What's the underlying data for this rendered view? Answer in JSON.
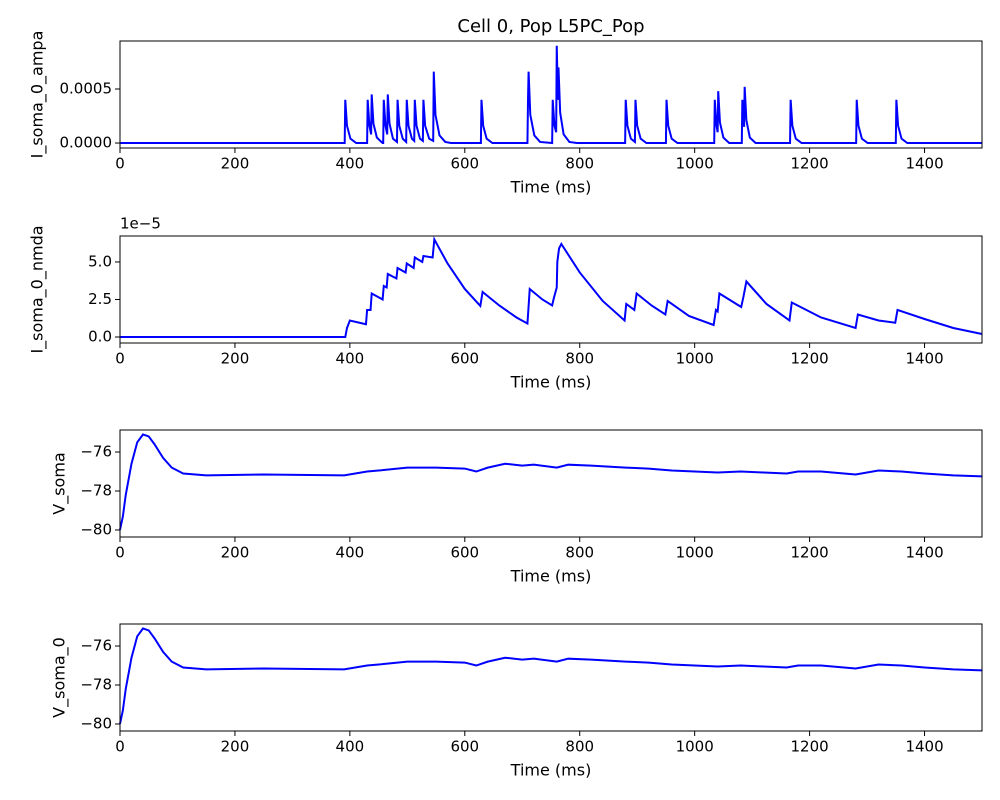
{
  "chart_data": [
    {
      "type": "line",
      "title": "Cell 0, Pop L5PC_Pop",
      "xlabel": "Time (ms)",
      "ylabel": "I_soma_0_ampa",
      "color": "#0000ff",
      "x": [
        0,
        391,
        392,
        395,
        401,
        411,
        430,
        431,
        434,
        437,
        438,
        441,
        447,
        457,
        458,
        459,
        462,
        465,
        466,
        469,
        475,
        482,
        483,
        486,
        492,
        498,
        499,
        502,
        508,
        512,
        513,
        516,
        522,
        527,
        528,
        531,
        538,
        545,
        546,
        549,
        556,
        566,
        576,
        628,
        629,
        632,
        638,
        648,
        709,
        710,
        711,
        714,
        721,
        731,
        752,
        753,
        756,
        759,
        760,
        762,
        763,
        766,
        772,
        782,
        795,
        879,
        880,
        883,
        889,
        896,
        897,
        900,
        906,
        916,
        950,
        951,
        954,
        960,
        970,
        1034,
        1035,
        1038,
        1040,
        1041,
        1044,
        1050,
        1060,
        1082,
        1083,
        1085,
        1086,
        1087,
        1090,
        1096,
        1106,
        1166,
        1167,
        1170,
        1176,
        1186,
        1281,
        1282,
        1285,
        1291,
        1301,
        1350,
        1351,
        1354,
        1360,
        1370,
        1500
      ],
      "values": [
        0,
        0,
        0.0004,
        0.00016,
        4e-05,
        0,
        0,
        0.0004,
        0.00016,
        8e-05,
        0.00045,
        0.00018,
        5e-05,
        0,
        0,
        0.0004,
        0.00016,
        8e-05,
        0.00045,
        0.00018,
        4e-05,
        1e-05,
        0.0004,
        0.00016,
        4e-05,
        1e-05,
        0.0004,
        0.00016,
        4e-05,
        2e-05,
        0.0004,
        0.00016,
        4e-05,
        2e-05,
        0.0004,
        0.00016,
        4e-05,
        2e-05,
        0.00066,
        0.00026,
        7e-05,
        1e-05,
        0,
        0,
        0.0004,
        0.00016,
        4e-05,
        0,
        0,
        0.0004,
        0.00066,
        0.00026,
        7e-05,
        1e-05,
        0,
        0.0004,
        0.00016,
        0.0001,
        0.0009,
        0.0004,
        0.0007,
        0.00028,
        8e-05,
        1e-05,
        0,
        0,
        0.0004,
        0.00016,
        4e-05,
        1e-05,
        0.0004,
        0.00016,
        4e-05,
        0,
        0,
        0.0004,
        0.00016,
        4e-05,
        0,
        0,
        0.0004,
        0.00016,
        0.0001,
        0.00048,
        0.00019,
        5e-05,
        0,
        0,
        0.0004,
        0.0002,
        0.00015,
        0.00052,
        0.00021,
        5e-05,
        0,
        0,
        0.0004,
        0.00016,
        4e-05,
        0,
        0,
        0.0004,
        0.00016,
        4e-05,
        0,
        0,
        0.0004,
        0.00016,
        4e-05,
        0,
        0
      ],
      "xlim": [
        0,
        1500
      ],
      "xticks": [
        0,
        200,
        400,
        600,
        800,
        1000,
        1200,
        1400
      ],
      "ylim": [
        -4.6e-05,
        0.000944
      ],
      "yticks": [
        {
          "value": 0,
          "label": "0.0000"
        },
        {
          "value": 0.0005,
          "label": "0.0005"
        }
      ]
    },
    {
      "type": "line",
      "xlabel": "Time (ms)",
      "ylabel": "I_soma_0_nmda",
      "offset_text": "1e−5",
      "color": "#0000ff",
      "x": [
        0,
        392,
        395,
        400,
        428,
        430,
        436,
        438,
        457,
        459,
        464,
        466,
        481,
        483,
        497,
        499,
        511,
        513,
        526,
        528,
        544,
        547,
        570,
        600,
        627,
        631,
        660,
        690,
        709,
        713,
        735,
        752,
        755,
        760,
        761,
        764,
        768,
        800,
        840,
        878,
        881,
        895,
        899,
        925,
        949,
        953,
        990,
        1033,
        1037,
        1040,
        1043,
        1081,
        1085,
        1090,
        1125,
        1165,
        1169,
        1220,
        1280,
        1284,
        1320,
        1349,
        1353,
        1400,
        1450,
        1500
      ],
      "values": [
        0,
        0,
        0.6,
        1.1,
        0.85,
        1.8,
        1.8,
        2.9,
        2.5,
        3.4,
        3.3,
        4.2,
        3.9,
        4.6,
        4.3,
        4.9,
        4.6,
        5.3,
        5.0,
        5.4,
        5.3,
        6.5,
        4.9,
        3.2,
        2.07,
        3.0,
        2.1,
        1.3,
        0.9,
        3.2,
        2.5,
        2.1,
        2.6,
        3.3,
        5.0,
        5.9,
        6.2,
        4.3,
        2.4,
        1.1,
        2.2,
        1.8,
        2.9,
        2.1,
        1.5,
        2.4,
        1.4,
        0.8,
        1.8,
        1.7,
        2.9,
        2.0,
        2.7,
        3.7,
        2.2,
        1.1,
        2.3,
        1.3,
        0.6,
        1.5,
        1.1,
        0.95,
        1.8,
        1.2,
        0.6,
        0.2
      ],
      "xlim": [
        0,
        1500
      ],
      "xticks": [
        0,
        200,
        400,
        600,
        800,
        1000,
        1200,
        1400
      ],
      "ylim": [
        -0.4,
        6.73
      ],
      "yticks": [
        {
          "value": 0,
          "label": "0.0"
        },
        2.5,
        {
          "value": 5,
          "label": "5.0"
        }
      ]
    },
    {
      "type": "line",
      "xlabel": "Time (ms)",
      "ylabel": "V_soma",
      "color": "#0000ff",
      "x": [
        0,
        5,
        10,
        20,
        30,
        40,
        50,
        60,
        75,
        90,
        110,
        150,
        250,
        390,
        430,
        450,
        500,
        550,
        600,
        620,
        640,
        670,
        700,
        720,
        760,
        780,
        820,
        880,
        920,
        960,
        1000,
        1040,
        1080,
        1120,
        1160,
        1180,
        1220,
        1260,
        1280,
        1320,
        1360,
        1400,
        1450,
        1500
      ],
      "values": [
        -80,
        -79.3,
        -78.2,
        -76.6,
        -75.5,
        -75.1,
        -75.2,
        -75.6,
        -76.3,
        -76.8,
        -77.1,
        -77.2,
        -77.15,
        -77.2,
        -77.0,
        -76.95,
        -76.8,
        -76.8,
        -76.85,
        -77.0,
        -76.8,
        -76.6,
        -76.7,
        -76.65,
        -76.8,
        -76.65,
        -76.7,
        -76.8,
        -76.85,
        -76.95,
        -77.0,
        -77.05,
        -77.0,
        -77.05,
        -77.1,
        -77.0,
        -77.0,
        -77.1,
        -77.15,
        -76.95,
        -77.0,
        -77.1,
        -77.2,
        -77.25
      ],
      "xlim": [
        0,
        1500
      ],
      "xticks": [
        0,
        200,
        400,
        600,
        800,
        1000,
        1200,
        1400
      ],
      "ylim": [
        -80.36,
        -74.87
      ],
      "yticks": [
        {
          "value": -80,
          "label": "−80"
        },
        {
          "value": -78,
          "label": "−78"
        },
        {
          "value": -76,
          "label": "−76"
        }
      ]
    },
    {
      "type": "line",
      "xlabel": "Time (ms)",
      "ylabel": "V_soma_0",
      "color": "#0000ff",
      "x": [
        0,
        5,
        10,
        20,
        30,
        40,
        50,
        60,
        75,
        90,
        110,
        150,
        250,
        390,
        430,
        450,
        500,
        550,
        600,
        620,
        640,
        670,
        700,
        720,
        760,
        780,
        820,
        880,
        920,
        960,
        1000,
        1040,
        1080,
        1120,
        1160,
        1180,
        1220,
        1260,
        1280,
        1320,
        1360,
        1400,
        1450,
        1500
      ],
      "values": [
        -80,
        -79.3,
        -78.2,
        -76.6,
        -75.5,
        -75.1,
        -75.2,
        -75.6,
        -76.3,
        -76.8,
        -77.1,
        -77.2,
        -77.15,
        -77.2,
        -77.0,
        -76.95,
        -76.8,
        -76.8,
        -76.85,
        -77.0,
        -76.8,
        -76.6,
        -76.7,
        -76.65,
        -76.8,
        -76.65,
        -76.7,
        -76.8,
        -76.85,
        -76.95,
        -77.0,
        -77.05,
        -77.0,
        -77.05,
        -77.1,
        -77.0,
        -77.0,
        -77.1,
        -77.15,
        -76.95,
        -77.0,
        -77.1,
        -77.2,
        -77.25
      ],
      "xlim": [
        0,
        1500
      ],
      "xticks": [
        0,
        200,
        400,
        600,
        800,
        1000,
        1200,
        1400
      ],
      "ylim": [
        -80.36,
        -74.87
      ],
      "yticks": [
        {
          "value": -80,
          "label": "−80"
        },
        {
          "value": -78,
          "label": "−78"
        },
        {
          "value": -76,
          "label": "−76"
        }
      ]
    }
  ]
}
